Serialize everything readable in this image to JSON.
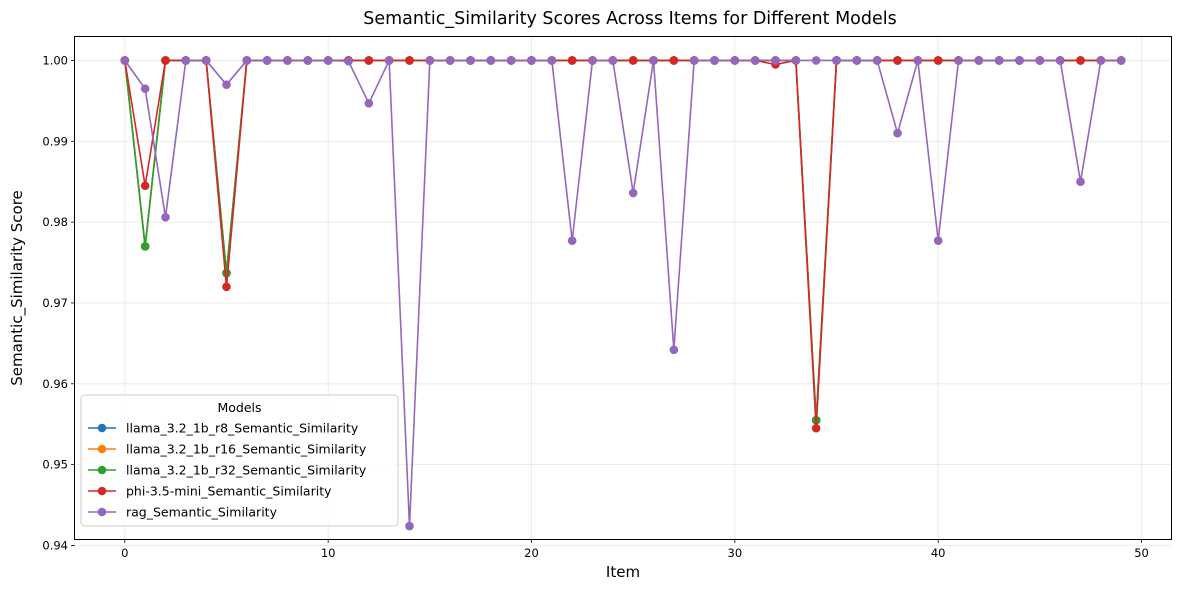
{
  "chart_data": {
    "type": "line",
    "title": "Semantic_Similarity Scores Across Items for Different Models",
    "xlabel": "Item",
    "ylabel": "Semantic_Similarity Score",
    "xlim": [
      -2.45,
      51.45
    ],
    "ylim": [
      0.9408,
      1.0029
    ],
    "xticks": [
      0,
      10,
      20,
      30,
      40,
      50
    ],
    "yticks": [
      0.94,
      0.95,
      0.96,
      0.97,
      0.98,
      0.99,
      1.0
    ],
    "ytick_labels": [
      "0.94",
      "0.95",
      "0.96",
      "0.97",
      "0.98",
      "0.99",
      "1.00"
    ],
    "grid": true,
    "legend_title": "Models",
    "legend_position": "lower-left",
    "x": [
      0,
      1,
      2,
      3,
      4,
      5,
      6,
      7,
      8,
      9,
      10,
      11,
      12,
      13,
      14,
      15,
      16,
      17,
      18,
      19,
      20,
      21,
      22,
      23,
      24,
      25,
      26,
      27,
      28,
      29,
      30,
      31,
      32,
      33,
      34,
      35,
      36,
      37,
      38,
      39,
      40,
      41,
      42,
      43,
      44,
      45,
      46,
      47,
      48,
      49
    ],
    "series": [
      {
        "name": "llama_3.2_1b_r8_Semantic_Similarity",
        "color": "#1f77b4",
        "values": [
          1.0,
          0.977,
          1.0,
          1.0,
          1.0,
          0.9737,
          1.0,
          1.0,
          1.0,
          1.0,
          1.0,
          1.0,
          1.0,
          1.0,
          1.0,
          1.0,
          1.0,
          1.0,
          1.0,
          1.0,
          1.0,
          1.0,
          1.0,
          1.0,
          1.0,
          1.0,
          1.0,
          1.0,
          1.0,
          1.0,
          1.0,
          1.0,
          1.0,
          1.0,
          0.9555,
          1.0,
          1.0,
          1.0,
          1.0,
          1.0,
          1.0,
          1.0,
          1.0,
          1.0,
          1.0,
          1.0,
          1.0,
          1.0,
          1.0,
          1.0
        ]
      },
      {
        "name": "llama_3.2_1b_r16_Semantic_Similarity",
        "color": "#ff7f0e",
        "values": [
          1.0,
          0.977,
          1.0,
          1.0,
          1.0,
          0.9737,
          1.0,
          1.0,
          1.0,
          1.0,
          1.0,
          1.0,
          1.0,
          1.0,
          1.0,
          1.0,
          1.0,
          1.0,
          1.0,
          1.0,
          1.0,
          1.0,
          1.0,
          1.0,
          1.0,
          1.0,
          1.0,
          1.0,
          1.0,
          1.0,
          1.0,
          1.0,
          1.0,
          1.0,
          0.9555,
          1.0,
          1.0,
          1.0,
          1.0,
          1.0,
          1.0,
          1.0,
          1.0,
          1.0,
          1.0,
          1.0,
          1.0,
          1.0,
          1.0,
          1.0
        ]
      },
      {
        "name": "llama_3.2_1b_r32_Semantic_Similarity",
        "color": "#2ca02c",
        "values": [
          1.0,
          0.977,
          1.0,
          1.0,
          1.0,
          0.9737,
          1.0,
          1.0,
          1.0,
          1.0,
          1.0,
          1.0,
          1.0,
          1.0,
          1.0,
          1.0,
          1.0,
          1.0,
          1.0,
          1.0,
          1.0,
          1.0,
          1.0,
          1.0,
          1.0,
          1.0,
          1.0,
          1.0,
          1.0,
          1.0,
          1.0,
          1.0,
          1.0,
          1.0,
          0.9555,
          1.0,
          1.0,
          1.0,
          1.0,
          1.0,
          1.0,
          1.0,
          1.0,
          1.0,
          1.0,
          1.0,
          1.0,
          1.0,
          1.0,
          1.0
        ]
      },
      {
        "name": "phi-3.5-mini_Semantic_Similarity",
        "color": "#d62728",
        "values": [
          1.0,
          0.9845,
          1.0,
          1.0,
          1.0,
          0.972,
          1.0,
          1.0,
          1.0,
          1.0,
          1.0,
          1.0,
          1.0,
          1.0,
          1.0,
          1.0,
          1.0,
          1.0,
          1.0,
          1.0,
          1.0,
          1.0,
          1.0,
          1.0,
          1.0,
          1.0,
          1.0,
          1.0,
          1.0,
          1.0,
          1.0,
          1.0,
          0.9995,
          1.0,
          0.9545,
          1.0,
          1.0,
          1.0,
          1.0,
          1.0,
          1.0,
          1.0,
          1.0,
          1.0,
          1.0,
          1.0,
          1.0,
          1.0,
          1.0,
          1.0
        ]
      },
      {
        "name": "rag_Semantic_Similarity",
        "color": "#9467bd",
        "values": [
          1.0,
          0.9965,
          0.9806,
          1.0,
          1.0,
          0.997,
          1.0,
          1.0,
          1.0,
          1.0,
          1.0,
          0.9999,
          0.9947,
          1.0,
          0.9424,
          1.0,
          1.0,
          1.0,
          1.0,
          1.0,
          1.0,
          1.0,
          0.9777,
          1.0,
          1.0,
          0.9836,
          1.0,
          0.9642,
          1.0,
          1.0,
          1.0,
          1.0,
          1.0,
          1.0,
          1.0,
          1.0,
          1.0,
          1.0,
          0.991,
          1.0,
          0.9777,
          1.0,
          1.0,
          1.0,
          1.0,
          1.0,
          1.0,
          0.985,
          1.0,
          1.0
        ]
      }
    ]
  }
}
